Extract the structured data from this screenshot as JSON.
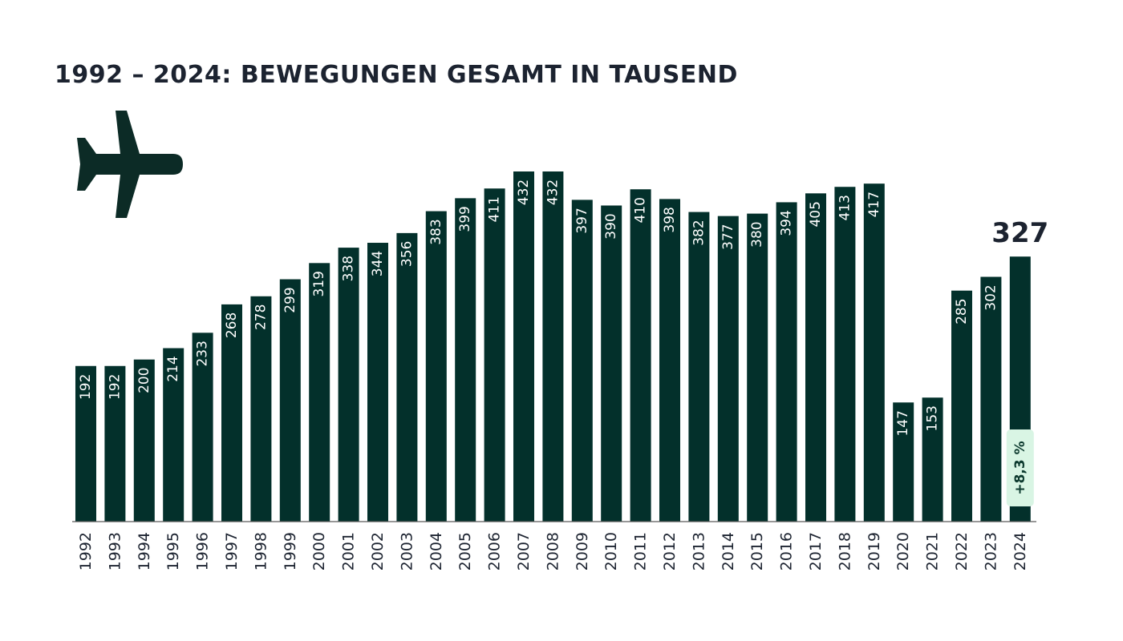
{
  "title": "1992 – 2024: BEWEGUNGEN GESAMT IN TAUSEND",
  "icon": "airplane-icon",
  "colors": {
    "bar": "#03302b",
    "text": "#1c2330",
    "bar_label": "#ffffff",
    "badge_bg": "#d9f5e4",
    "badge_text": "#0c3a2e",
    "axis": "#5a5a5a"
  },
  "chart_data": {
    "type": "bar",
    "categories": [
      "1992",
      "1993",
      "1994",
      "1995",
      "1996",
      "1997",
      "1998",
      "1999",
      "2000",
      "2001",
      "2002",
      "2003",
      "2004",
      "2005",
      "2006",
      "2007",
      "2008",
      "2009",
      "2010",
      "2011",
      "2012",
      "2013",
      "2014",
      "2015",
      "2016",
      "2017",
      "2018",
      "2019",
      "2020",
      "2021",
      "2022",
      "2023",
      "2024"
    ],
    "values": [
      192,
      192,
      200,
      214,
      233,
      268,
      278,
      299,
      319,
      338,
      344,
      356,
      383,
      399,
      411,
      432,
      432,
      397,
      390,
      410,
      398,
      382,
      377,
      380,
      394,
      405,
      413,
      417,
      147,
      153,
      285,
      302,
      327
    ],
    "title": "1992 – 2024: BEWEGUNGEN GESAMT IN TAUSEND",
    "highlight": {
      "category": "2024",
      "label": "327",
      "change_badge": "+8,3 %"
    },
    "grid": false,
    "legend": "none"
  }
}
